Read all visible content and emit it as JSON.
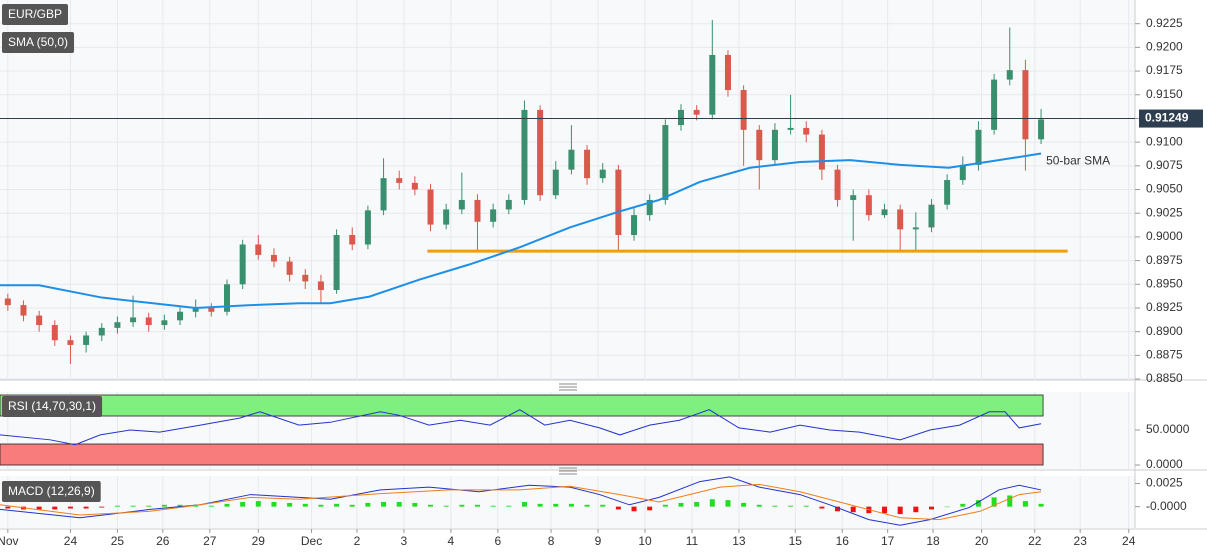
{
  "chart_data": [
    {
      "type": "candlestick",
      "title": "EUR/GBP",
      "xlim": [
        -0.5,
        72
      ],
      "ylim": [
        0.8849,
        0.925
      ],
      "yticks": [
        {
          "value": 0.885,
          "label": "0.8850"
        },
        0.8875,
        {
          "value": 0.89,
          "label": "0.8900"
        },
        0.8925,
        {
          "value": 0.895,
          "label": "0.8950"
        },
        0.8975,
        {
          "value": 0.9,
          "label": "0.9000"
        },
        0.9025,
        {
          "value": 0.905,
          "label": "0.9050"
        },
        0.9075,
        {
          "value": 0.91,
          "label": "0.9100"
        },
        0.9125,
        {
          "value": 0.915,
          "label": "0.9150"
        },
        0.9175,
        {
          "value": 0.92,
          "label": "0.9200"
        },
        0.9225
      ],
      "grid": true,
      "up_color": "#3a8f6e",
      "down_color": "#d9594c",
      "open": [
        0.8935,
        0.8928,
        0.8917,
        0.8907,
        0.8891,
        0.8886,
        0.8896,
        0.8904,
        0.891,
        0.8915,
        0.8907,
        0.8912,
        0.8921,
        0.8925,
        0.8921,
        0.895,
        0.8992,
        0.8981,
        0.8974,
        0.896,
        0.8953,
        0.8944,
        0.9002,
        0.8992,
        0.9028,
        0.9062,
        0.9057,
        0.905,
        0.9013,
        0.9029,
        0.9039,
        0.9016,
        0.9029,
        0.9039,
        0.9134,
        0.9044,
        0.9071,
        0.9092,
        0.9062,
        0.9071,
        0.9002,
        0.9023,
        0.9039,
        0.9118,
        0.9134,
        0.9129,
        0.9192,
        0.9155,
        0.9113,
        0.9081,
        0.9113,
        0.9115,
        0.9108,
        0.9071,
        0.9039,
        0.9044,
        0.9023,
        0.9029,
        0.9008,
        0.901,
        0.9034,
        0.906,
        0.9076,
        0.9113,
        0.9166,
        0.9176,
        0.9103
      ],
      "high": [
        0.894,
        0.8933,
        0.8922,
        0.8912,
        0.8896,
        0.89,
        0.8909,
        0.8916,
        0.8938,
        0.892,
        0.8918,
        0.8926,
        0.8934,
        0.893,
        0.8955,
        0.8997,
        0.9002,
        0.8988,
        0.8979,
        0.8966,
        0.896,
        0.9008,
        0.901,
        0.9033,
        0.9083,
        0.907,
        0.9064,
        0.9056,
        0.9035,
        0.9068,
        0.9045,
        0.9035,
        0.9045,
        0.9144,
        0.9139,
        0.908,
        0.9118,
        0.9097,
        0.9078,
        0.9076,
        0.903,
        0.9045,
        0.9124,
        0.914,
        0.9139,
        0.9229,
        0.9197,
        0.916,
        0.9118,
        0.912,
        0.915,
        0.9122,
        0.9113,
        0.9076,
        0.905,
        0.905,
        0.9035,
        0.9034,
        0.9026,
        0.904,
        0.9066,
        0.9085,
        0.9122,
        0.9172,
        0.9221,
        0.9187,
        0.9135
      ],
      "low": [
        0.8922,
        0.8911,
        0.89,
        0.8885,
        0.8866,
        0.8878,
        0.889,
        0.8898,
        0.8905,
        0.89,
        0.8902,
        0.8907,
        0.8915,
        0.8916,
        0.8917,
        0.8945,
        0.8976,
        0.8968,
        0.8953,
        0.8945,
        0.893,
        0.894,
        0.8986,
        0.8987,
        0.9023,
        0.905,
        0.9044,
        0.9006,
        0.9008,
        0.9024,
        0.8984,
        0.901,
        0.9024,
        0.9034,
        0.9038,
        0.904,
        0.9066,
        0.9055,
        0.9057,
        0.8984,
        0.8996,
        0.9017,
        0.9034,
        0.9112,
        0.9123,
        0.9124,
        0.9148,
        0.9075,
        0.905,
        0.9076,
        0.9108,
        0.91,
        0.906,
        0.9032,
        0.8996,
        0.9017,
        0.902,
        0.8984,
        0.8984,
        0.9005,
        0.9029,
        0.9055,
        0.907,
        0.9108,
        0.916,
        0.907,
        0.9098
      ],
      "close": [
        0.8928,
        0.8917,
        0.8907,
        0.8891,
        0.8886,
        0.8896,
        0.8904,
        0.891,
        0.8915,
        0.8907,
        0.8912,
        0.8921,
        0.8925,
        0.8921,
        0.895,
        0.8992,
        0.8981,
        0.8974,
        0.896,
        0.8953,
        0.8944,
        0.9002,
        0.8992,
        0.9028,
        0.9062,
        0.9057,
        0.905,
        0.9013,
        0.9029,
        0.9039,
        0.9016,
        0.9029,
        0.9039,
        0.9134,
        0.9044,
        0.9071,
        0.9092,
        0.9062,
        0.9071,
        0.9002,
        0.9023,
        0.9039,
        0.9118,
        0.9134,
        0.9129,
        0.9192,
        0.9155,
        0.9113,
        0.9081,
        0.9113,
        0.9115,
        0.9108,
        0.9071,
        0.9039,
        0.9044,
        0.9023,
        0.9029,
        0.9008,
        0.901,
        0.9034,
        0.906,
        0.9076,
        0.9113,
        0.9166,
        0.9176,
        0.9103,
        0.9124
      ],
      "last_price": 0.91249,
      "sma": {
        "name": "SMA (50,0)",
        "label": "50-bar SMA",
        "color": "#1e8fe6",
        "x": [
          -0.5,
          2,
          6,
          12,
          15.5,
          18.6,
          20.6,
          23.1,
          26.3,
          29.5,
          32.7,
          35.9,
          39.1,
          41.6,
          44.2,
          47.4,
          50.6,
          53.8,
          57,
          60.1,
          63.3,
          66
        ],
        "values": [
          0.8949,
          0.8949,
          0.8936,
          0.8925,
          0.8928,
          0.893,
          0.893,
          0.8937,
          0.8955,
          0.8971,
          0.8989,
          0.901,
          0.9027,
          0.9039,
          0.9058,
          0.9073,
          0.9079,
          0.9081,
          0.9076,
          0.9073,
          0.9081,
          0.9088
        ]
      },
      "support": {
        "value": 0.8985,
        "x": [
          26.8,
          67.7
        ],
        "color": "#f39c12"
      }
    },
    {
      "type": "line",
      "title": "RSI (14,70,30,1)",
      "xlim": [
        -0.5,
        72
      ],
      "ylim": [
        -5.7,
        104.3
      ],
      "yticks": [
        {
          "value": 0,
          "label": "0.0000"
        },
        {
          "value": 50,
          "label": "50.0000"
        }
      ],
      "bands": [
        {
          "range": [
            70,
            100
          ],
          "color": "#7ff07f"
        },
        {
          "range": [
            0,
            30
          ],
          "color": "#f87c7c"
        }
      ],
      "series": [
        {
          "color": "#2233cc",
          "x": [
            -0.5,
            2.7,
            4.3,
            5.9,
            7.8,
            9.7,
            12.3,
            14.8,
            16.1,
            18.6,
            20.6,
            23.8,
            25,
            26.9,
            28.9,
            30.8,
            32.7,
            34.3,
            35.9,
            37.8,
            39.1,
            41,
            42.9,
            44.8,
            46.7,
            48.7,
            50.6,
            52.5,
            54.4,
            57,
            58.9,
            60.8,
            62.7,
            63.7,
            64.6,
            66
          ],
          "values": [
            43,
            36,
            29,
            43,
            50,
            47,
            57,
            67,
            76,
            57,
            61,
            76,
            71,
            57,
            64,
            57,
            79,
            57,
            64,
            53,
            43,
            57,
            64,
            79,
            53,
            47,
            57,
            50,
            47,
            36,
            50,
            57,
            76,
            76,
            53,
            59
          ]
        }
      ]
    },
    {
      "type": "macd",
      "title": "MACD (12,26,9)",
      "xlim": [
        -0.5,
        72
      ],
      "ylim": [
        -0.0023,
        0.0033
      ],
      "yticks": [
        {
          "value": 0,
          "label": "-0.0000"
        },
        0.0025
      ],
      "xticks": [
        {
          "value": 0,
          "label": "Nov"
        },
        {
          "value": 4,
          "label": "24"
        },
        {
          "value": 7,
          "label": "25"
        },
        {
          "value": 9.9,
          "label": "26"
        },
        {
          "value": 12.9,
          "label": "27"
        },
        {
          "value": 16,
          "label": "29"
        },
        {
          "value": 19.4,
          "label": "Dec"
        },
        {
          "value": 22.3,
          "label": "2"
        },
        {
          "value": 25.3,
          "label": "3"
        },
        {
          "value": 28.3,
          "label": "4"
        },
        {
          "value": 31.3,
          "label": "6"
        },
        {
          "value": 34.7,
          "label": "8"
        },
        {
          "value": 37.7,
          "label": "9"
        },
        {
          "value": 40.7,
          "label": "10"
        },
        {
          "value": 43.7,
          "label": "11"
        },
        {
          "value": 46.7,
          "label": "13"
        },
        {
          "value": 50.3,
          "label": "15"
        },
        {
          "value": 53.3,
          "label": "16"
        },
        {
          "value": 56.2,
          "label": "17"
        },
        {
          "value": 59.1,
          "label": "18"
        },
        {
          "value": 62.2,
          "label": "20"
        },
        {
          "value": 65.6,
          "label": "22"
        },
        {
          "value": 68.5,
          "label": "23"
        },
        {
          "value": 71.6,
          "label": "24"
        }
      ],
      "histogram": {
        "up_color": "#22dd22",
        "down_color": "#ee1111",
        "values": [
          -0.0002,
          -0.0003,
          -0.0003,
          -0.0003,
          -0.0002,
          -0.0002,
          -0.0001,
          0.0001,
          0.0001,
          0.0001,
          0.0002,
          0.0002,
          0.0002,
          0.0001,
          0.0003,
          0.0005,
          0.0006,
          0.0005,
          0.0004,
          0.0003,
          0.0002,
          0.0003,
          0.0002,
          0.0004,
          0.0005,
          0.0005,
          0.0004,
          0.0002,
          0.0001,
          0.0002,
          0.0002,
          0.0001,
          0.0001,
          0.0005,
          0.0003,
          0.0003,
          0.0003,
          0.0002,
          0.0002,
          -0.0003,
          -0.0005,
          -0.0004,
          0.0002,
          0.0004,
          0.0005,
          0.0008,
          0.0007,
          0.0004,
          0.0002,
          0.0001,
          0.0001,
          0.0001,
          -0.0002,
          -0.0005,
          -0.0006,
          -0.0007,
          -0.0007,
          -0.0008,
          -0.0006,
          -0.0003,
          0,
          0.0003,
          0.0007,
          0.001,
          0.0012,
          0.0006,
          0.0003
        ]
      },
      "series": [
        {
          "color": "#2233cc",
          "x": [
            -0.5,
            4.6,
            9.1,
            12.3,
            15.5,
            18.6,
            20.6,
            23.8,
            26.9,
            30.1,
            33.3,
            35.9,
            37.8,
            39.7,
            41.6,
            44.2,
            46.1,
            48,
            50.6,
            52.5,
            55,
            57,
            58.9,
            61.4,
            63.3,
            64.6,
            66
          ],
          "values": [
            -0.0003,
            -0.0012,
            -0.0003,
            0.0002,
            0.0013,
            0.001,
            0.0008,
            0.0018,
            0.0021,
            0.0016,
            0.0023,
            0.0021,
            0.0013,
            0.0002,
            0.001,
            0.0027,
            0.0032,
            0.0021,
            0.0013,
            0.0002,
            -0.0014,
            -0.002,
            -0.0014,
            -0.0001,
            0.0018,
            0.0023,
            0.0018
          ]
        },
        {
          "color": "#f07f1a",
          "x": [
            -0.5,
            4.6,
            9.1,
            12.3,
            15.5,
            18.6,
            23.8,
            28.2,
            32.7,
            35.9,
            39.1,
            41.6,
            45.5,
            48,
            50.6,
            53.8,
            57,
            59.5,
            62.1,
            64.6,
            66
          ],
          "values": [
            0.0002,
            -0.0009,
            -0.0005,
            0.0002,
            0.001,
            0.0008,
            0.0014,
            0.0018,
            0.0018,
            0.0022,
            0.0013,
            0.0005,
            0.0021,
            0.0024,
            0.0016,
            0.0002,
            -0.0012,
            -0.0014,
            -0.0005,
            0.0013,
            0.0016
          ]
        }
      ]
    }
  ]
}
